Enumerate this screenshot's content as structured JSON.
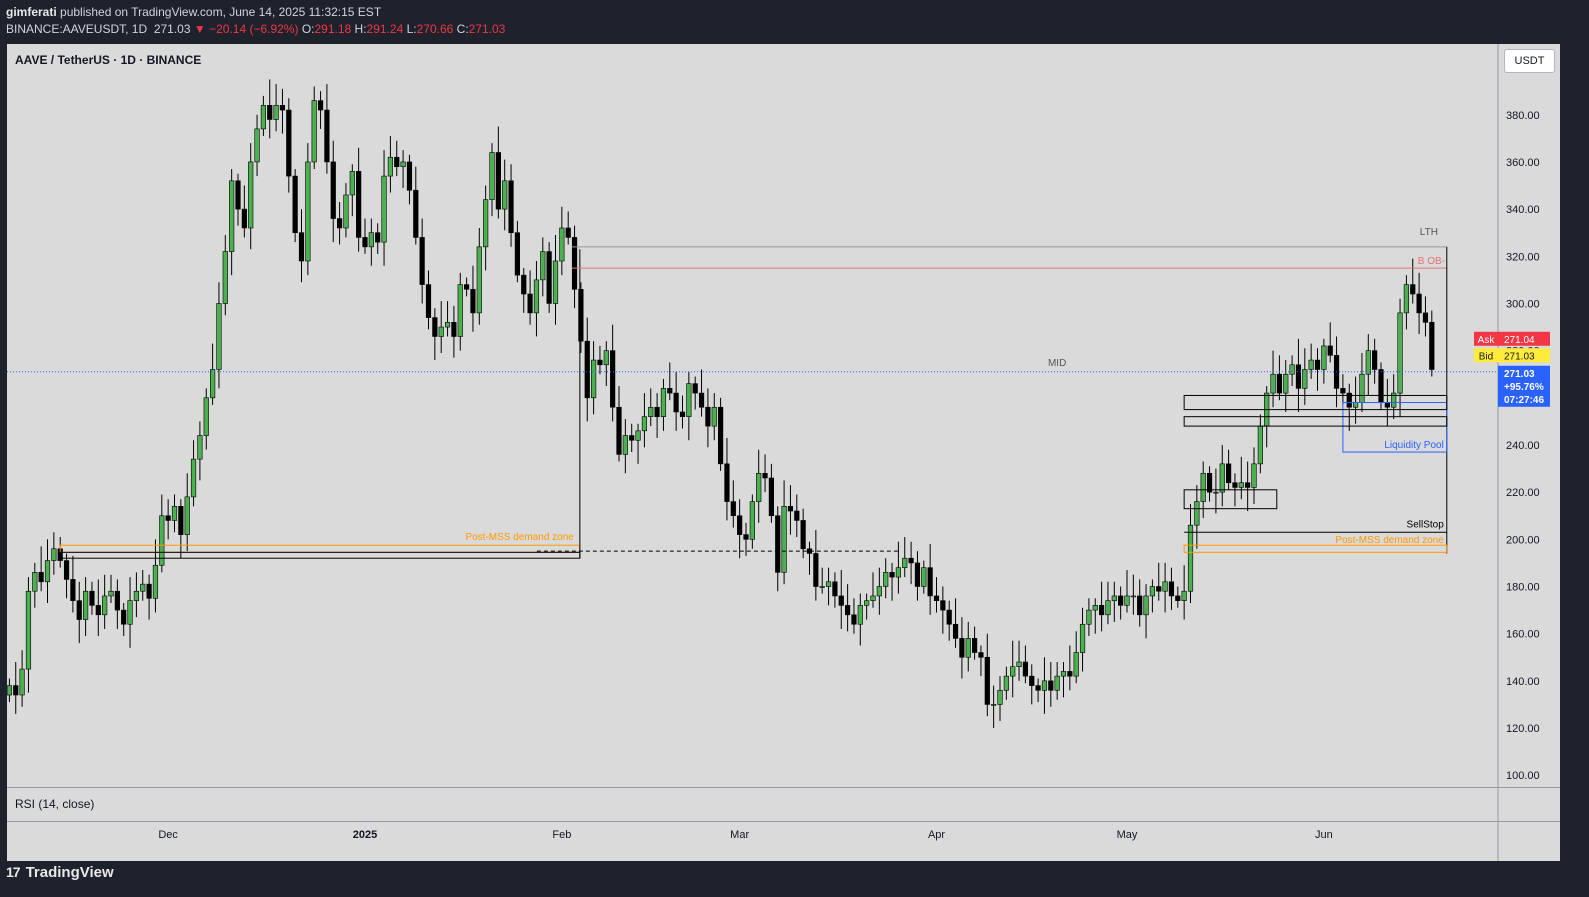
{
  "header": {
    "author": "gimferati",
    "published_text": "published on TradingView.com, June 14, 2025 11:32:15 EST",
    "symbol_line": "BINANCE:AAVEUSDT, 1D",
    "last": "271.03",
    "change": "▼ −20.14 (−6.92%)",
    "o_label": "O:",
    "o": "291.18",
    "h_label": "H:",
    "h": "291.24",
    "l_label": "L:",
    "l": "270.66",
    "c_label": "C:",
    "c": "271.03"
  },
  "pane": {
    "title": "AAVE / TetherUS · 1D · BINANCE",
    "currency_button": "USDT",
    "rsi_label": "RSI (14, close)"
  },
  "footer": {
    "logo_glyph": "17",
    "brand": "TradingView"
  },
  "colors": {
    "background": "#1e222d",
    "chart_bg": "#dadada",
    "up_body": "#4caf50",
    "down_body": "#000000",
    "demand_zone": "#ff9800",
    "ob_line": "#e57373",
    "liquidity": "#2962ff",
    "ask": "#f23645",
    "bid": "#ffeb3b",
    "last_price": "#2962ff"
  },
  "chart_data": {
    "type": "candlestick",
    "y_axis": {
      "min": 95,
      "max": 410,
      "ticks": [
        100,
        120,
        140,
        160,
        180,
        200,
        220,
        240,
        260,
        280,
        300,
        320,
        340,
        360,
        380,
        400
      ]
    },
    "x_axis_labels": [
      {
        "label": "Dec",
        "date": "2024-12-01"
      },
      {
        "label": "2025",
        "date": "2025-01-01"
      },
      {
        "label": "Feb",
        "date": "2025-02-01"
      },
      {
        "label": "Mar",
        "date": "2025-03-01"
      },
      {
        "label": "Apr",
        "date": "2025-04-01"
      },
      {
        "label": "May",
        "date": "2025-05-01"
      },
      {
        "label": "Jun",
        "date": "2025-06-01"
      }
    ],
    "start_date": "2024-11-06",
    "close": [
      138,
      134,
      145,
      178,
      186,
      182,
      191,
      196,
      191,
      183,
      174,
      166,
      178,
      172,
      168,
      176,
      178,
      170,
      164,
      174,
      178,
      181,
      175,
      189,
      210,
      208,
      214,
      202,
      218,
      234,
      244,
      260,
      272,
      300,
      322,
      352,
      340,
      332,
      360,
      374,
      384,
      378,
      384,
      382,
      354,
      330,
      318,
      360,
      386,
      382,
      360,
      336,
      332,
      346,
      356,
      328,
      324,
      330,
      326,
      354,
      362,
      358,
      360,
      348,
      328,
      308,
      294,
      286,
      290,
      292,
      286,
      308,
      306,
      296,
      324,
      344,
      364,
      340,
      352,
      330,
      312,
      304,
      296,
      310,
      322,
      300,
      318,
      332,
      328,
      306,
      284,
      260,
      276,
      274,
      280,
      256,
      236,
      244,
      242,
      246,
      252,
      256,
      252,
      264,
      262,
      254,
      252,
      266,
      262,
      256,
      248,
      256,
      232,
      216,
      210,
      202,
      200,
      216,
      228,
      226,
      210,
      186,
      214,
      212,
      208,
      196,
      194,
      180,
      180,
      182,
      176,
      172,
      168,
      164,
      172,
      174,
      176,
      180,
      186,
      184,
      188,
      192,
      190,
      180,
      188,
      176,
      174,
      170,
      164,
      158,
      150,
      158,
      152,
      150,
      130,
      130,
      136,
      142,
      146,
      148,
      142,
      138,
      136,
      140,
      136,
      142,
      144,
      142,
      152,
      164,
      170,
      172,
      168,
      174,
      176,
      172,
      176,
      176,
      168,
      176,
      180,
      178,
      182,
      176,
      174,
      178,
      206,
      216,
      228,
      220,
      220,
      232,
      224,
      222,
      224,
      222,
      232,
      248,
      262,
      270,
      262,
      270,
      274,
      264,
      272,
      276,
      272,
      282,
      278,
      264,
      262,
      256,
      258,
      270,
      280,
      272,
      258,
      256,
      262,
      296,
      308,
      304,
      296,
      292,
      272
    ],
    "series": [],
    "annotations": [
      {
        "text": "Post-MSS demand zone",
        "low": 194.5,
        "high": 197.5
      },
      {
        "text": "Post-MSS demand zone",
        "low": 194.5,
        "high": 197.5
      },
      {
        "text": "LTH",
        "value": 324
      },
      {
        "text": "B OB-",
        "value": 315
      },
      {
        "text": "MID",
        "value": 271
      },
      {
        "text": "Liquidity Pool",
        "value": 237
      },
      {
        "text": "SellStop",
        "value": 203
      }
    ],
    "price_labels": {
      "ask_label": "Ask",
      "ask": "271.04",
      "bid_label": "Bid",
      "bid": "271.03",
      "last": "271.03",
      "last_change": "+95.76%",
      "countdown": "07:27:46"
    }
  }
}
